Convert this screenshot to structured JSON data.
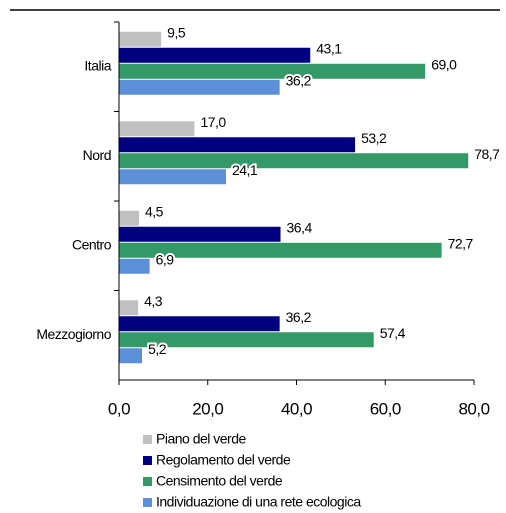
{
  "chart_data": {
    "type": "hbar",
    "categories": [
      "Italia",
      "Nord",
      "Centro",
      "Mezzogiorno"
    ],
    "series": [
      {
        "name": "Piano del verde",
        "color": "#c0c0c0",
        "values": [
          9.5,
          17.0,
          4.5,
          4.3
        ],
        "value_labels": [
          "9,5",
          "17,0",
          "4,5",
          "4,3"
        ]
      },
      {
        "name": "Regolamento del verde",
        "color": "#000080",
        "values": [
          43.1,
          53.2,
          36.4,
          36.2
        ],
        "value_labels": [
          "43,1",
          "53,2",
          "36,4",
          "36,2"
        ]
      },
      {
        "name": "Censimento del verde",
        "color": "#339966",
        "values": [
          69.0,
          78.7,
          72.7,
          57.4
        ],
        "value_labels": [
          "69,0",
          "78,7",
          "72,7",
          "57,4"
        ]
      },
      {
        "name": "Individuazione di una rete ecologica",
        "color": "#5b8fd8",
        "values": [
          36.2,
          24.1,
          6.9,
          5.2
        ],
        "value_labels": [
          "36,2",
          "24,1",
          "6,9",
          "5,2"
        ]
      }
    ],
    "xlim": [
      0,
      80
    ],
    "xticks": [
      {
        "value": 0,
        "label": "0,0"
      },
      {
        "value": 20,
        "label": "20,0"
      },
      {
        "value": 40,
        "label": "40,0"
      },
      {
        "value": 60,
        "label": "60,0"
      },
      {
        "value": 80,
        "label": "80,0"
      }
    ]
  }
}
